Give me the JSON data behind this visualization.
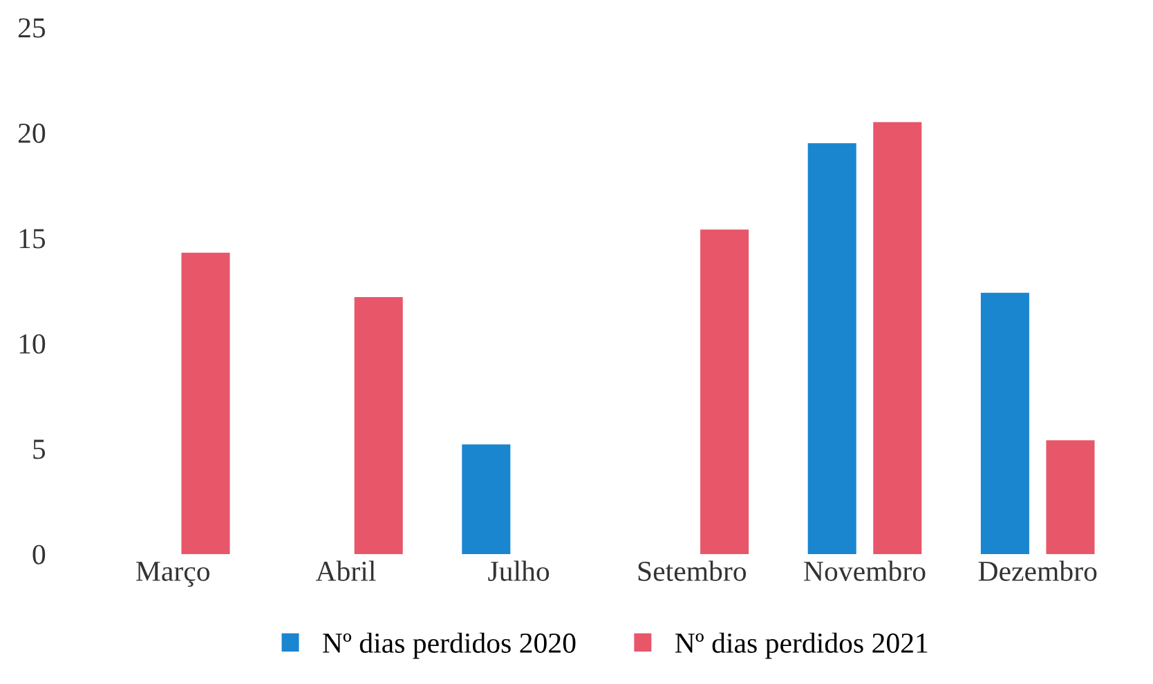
{
  "chart_data": {
    "type": "bar",
    "categories": [
      "Março",
      "Abril",
      "Julho",
      "Setembro",
      "Novembro",
      "Dezembro"
    ],
    "series": [
      {
        "name": "Nº dias perdidos 2020",
        "color": "#1a86d0",
        "values": [
          null,
          null,
          5.2,
          null,
          19.5,
          12.4
        ]
      },
      {
        "name": "Nº dias perdidos 2021",
        "color": "#e8566a",
        "values": [
          14.3,
          12.2,
          null,
          15.4,
          20.5,
          5.4
        ]
      }
    ],
    "ylim": [
      0,
      25
    ],
    "yticks": [
      0,
      5,
      10,
      15,
      20,
      25
    ],
    "grid": false,
    "legend": "bottom"
  }
}
